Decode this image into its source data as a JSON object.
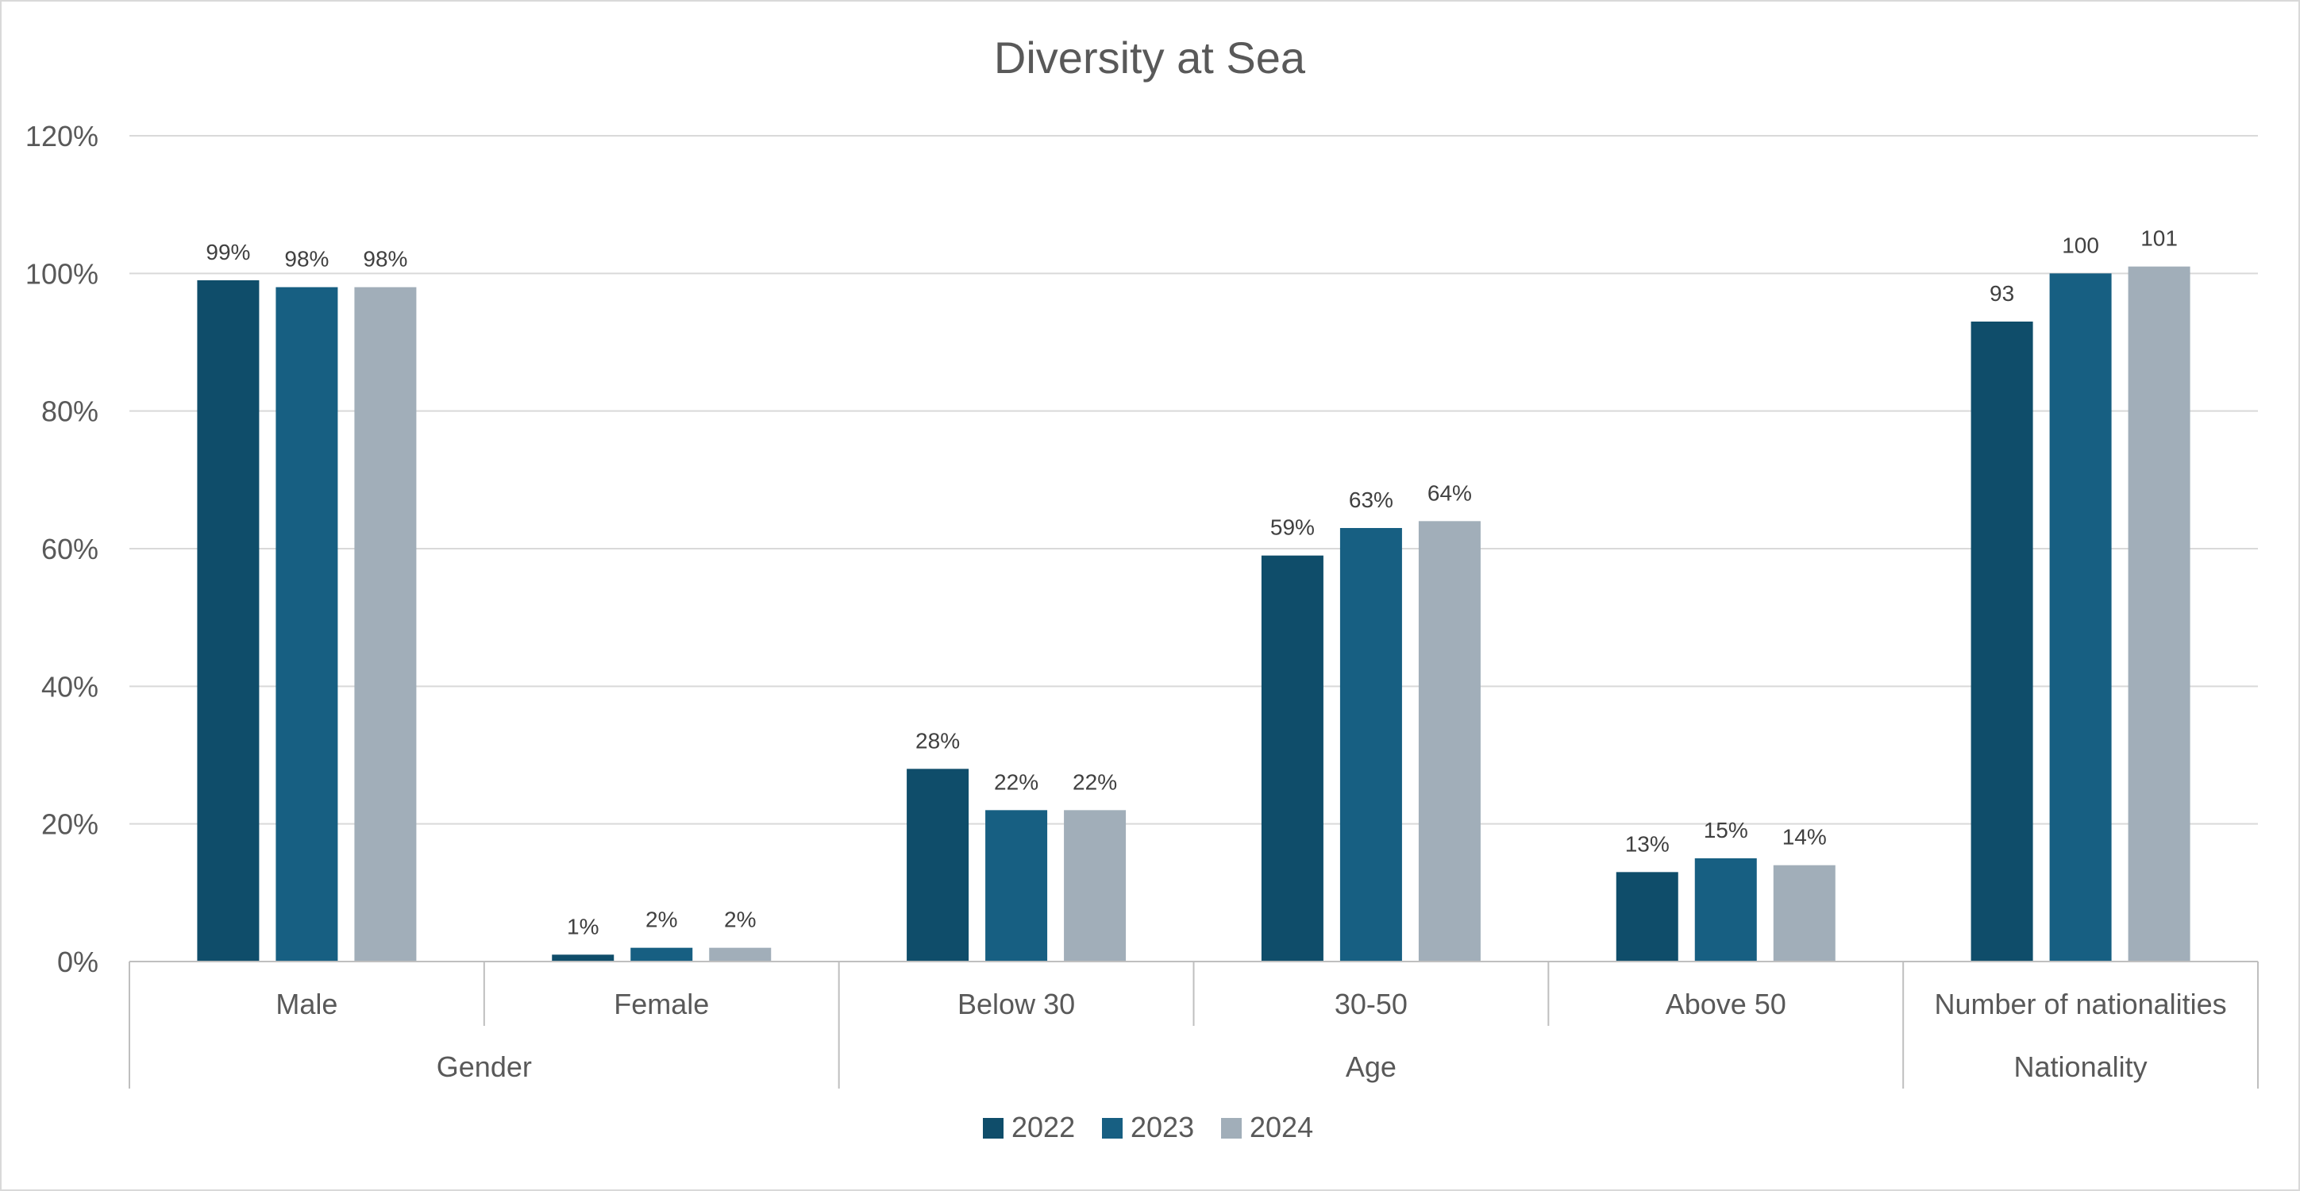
{
  "chart_data": {
    "type": "bar",
    "title": "Diversity at Sea",
    "xlabel": "",
    "ylabel": "",
    "ylim": [
      0,
      120
    ],
    "yticks": [
      "0%",
      "20%",
      "40%",
      "60%",
      "80%",
      "100%",
      "120%"
    ],
    "grid": true,
    "legend_position": "bottom",
    "categories": [
      "Male",
      "Female",
      "Below 30",
      "30-50",
      "Above 50",
      "Number of nationalities"
    ],
    "groups": [
      {
        "label": "Gender",
        "categories": [
          "Male",
          "Female"
        ]
      },
      {
        "label": "Age",
        "categories": [
          "Below 30",
          "30-50",
          "Above 50"
        ]
      },
      {
        "label": "Nationality",
        "categories": [
          "Number of nationalities"
        ]
      }
    ],
    "series": [
      {
        "name": "2022",
        "color": "#0f4d6a",
        "values": [
          99,
          1,
          28,
          59,
          13,
          93
        ],
        "labels": [
          "99%",
          "1%",
          "28%",
          "59%",
          "13%",
          "93"
        ]
      },
      {
        "name": "2023",
        "color": "#175f82",
        "values": [
          98,
          2,
          22,
          63,
          15,
          100
        ],
        "labels": [
          "98%",
          "2%",
          "22%",
          "63%",
          "15%",
          "100"
        ]
      },
      {
        "name": "2024",
        "color": "#a1aeb9",
        "values": [
          98,
          2,
          22,
          64,
          14,
          101
        ],
        "labels": [
          "98%",
          "2%",
          "22%",
          "64%",
          "14%",
          "101"
        ]
      }
    ],
    "colors": {
      "text": "#595959",
      "data_label": "#404040",
      "gridline": "#d9d9d9",
      "axis": "#bfbfbf"
    }
  }
}
